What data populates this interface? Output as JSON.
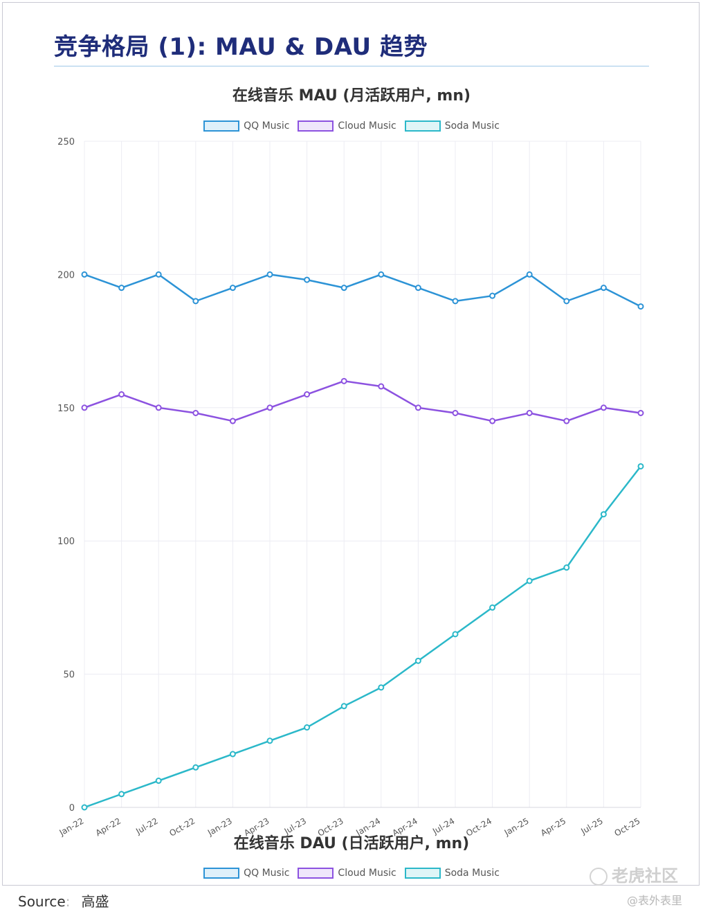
{
  "page": {
    "title": "竞争格局 (1): MAU & DAU 趋势",
    "source_label": "Source",
    "source_value": "高盛",
    "watermark_logo": "老虎社区",
    "watermark_handle": "@表外表里"
  },
  "colors": {
    "qq": "#2c93d6",
    "cloud": "#8c52e0",
    "soda": "#2bb8c9",
    "grid": "#ececf3",
    "title": "#1f2d7a"
  },
  "chart_data": [
    {
      "type": "line",
      "title": "在线音乐 MAU (月活跃用户, mn)",
      "categories": [
        "Jan-22",
        "Apr-22",
        "Jul-22",
        "Oct-22",
        "Jan-23",
        "Apr-23",
        "Jul-23",
        "Oct-23",
        "Jan-24",
        "Apr-24",
        "Jul-24",
        "Oct-24",
        "Jan-25",
        "Apr-25",
        "Jul-25",
        "Oct-25"
      ],
      "yticks": [
        "0",
        "50",
        "100",
        "150",
        "200",
        "250"
      ],
      "ylim": [
        0,
        250
      ],
      "grid": true,
      "legend_position": "top",
      "series": [
        {
          "name": "QQ Music",
          "values": [
            200,
            195,
            200,
            190,
            195,
            200,
            198,
            195,
            200,
            195,
            190,
            192,
            200,
            190,
            195,
            188
          ]
        },
        {
          "name": "Cloud Music",
          "values": [
            150,
            155,
            150,
            148,
            145,
            150,
            155,
            160,
            158,
            150,
            148,
            145,
            148,
            145,
            150,
            148
          ]
        },
        {
          "name": "Soda Music",
          "values": [
            0,
            5,
            10,
            15,
            20,
            25,
            30,
            38,
            45,
            55,
            65,
            75,
            85,
            90,
            110,
            128
          ]
        }
      ]
    },
    {
      "type": "line",
      "title": "在线音乐 DAU (日活跃用户, mn)",
      "legend_position": "top",
      "series": [
        {
          "name": "QQ Music"
        },
        {
          "name": "Cloud Music"
        },
        {
          "name": "Soda Music"
        }
      ]
    }
  ]
}
